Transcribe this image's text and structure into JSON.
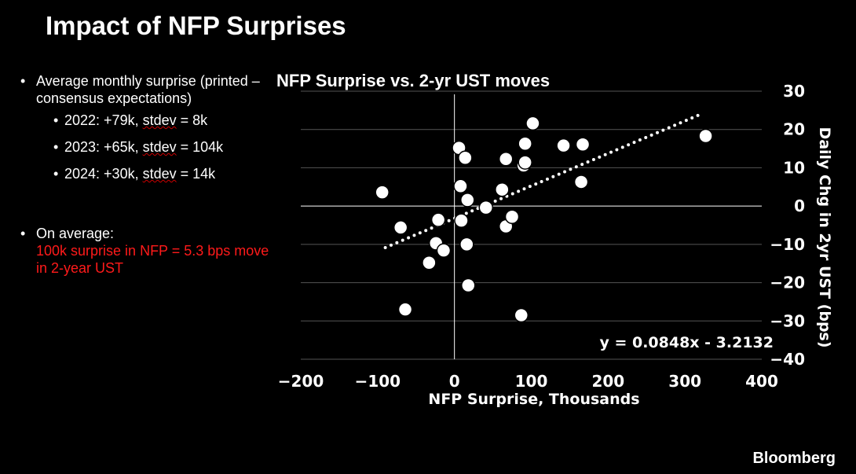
{
  "slide": {
    "title": "Impact of NFP Surprises",
    "brand": "Bloomberg"
  },
  "bullets": {
    "first": "Average monthly surprise (printed – consensus expectations)",
    "sub": [
      {
        "year": "2022: +79k, ",
        "word": "stdev",
        "rest": " = 8k"
      },
      {
        "year": "2023: +65k, ",
        "word": "stdev",
        "rest": " = 104k"
      },
      {
        "year": "2024: +30k, ",
        "word": "stdev",
        "rest": " = 14k"
      }
    ],
    "second": "On average:",
    "highlight": "100k surprise in NFP = 5.3 bps move in 2-year UST"
  },
  "colors": {
    "background": "#000000",
    "text": "#ffffff",
    "highlight": "#ff1a1a"
  },
  "chart_data": {
    "type": "scatter",
    "title": "NFP Surprise vs. 2-yr UST moves",
    "xlabel": "NFP Surprise, Thousands",
    "ylabel": "Daily Chg in 2yr UST (bps)",
    "xlim": [
      -200,
      400
    ],
    "ylim": [
      -40,
      30
    ],
    "xticks": [
      -200,
      -100,
      0,
      100,
      200,
      300,
      400
    ],
    "yticks": [
      30,
      20,
      10,
      0,
      -10,
      -20,
      -30,
      -40
    ],
    "points": [
      {
        "x": -94,
        "y": 3.6
      },
      {
        "x": -70,
        "y": -5.6
      },
      {
        "x": -64,
        "y": -27
      },
      {
        "x": -33,
        "y": -14.8
      },
      {
        "x": -24,
        "y": -9.7
      },
      {
        "x": -21,
        "y": -3.6
      },
      {
        "x": -14,
        "y": -11.6
      },
      {
        "x": 6,
        "y": 15.2
      },
      {
        "x": 8,
        "y": 5.2
      },
      {
        "x": 9,
        "y": -3.8
      },
      {
        "x": 14,
        "y": 12.6
      },
      {
        "x": 16,
        "y": -10
      },
      {
        "x": 17,
        "y": 1.6
      },
      {
        "x": 18,
        "y": -20.7
      },
      {
        "x": 41,
        "y": -0.4
      },
      {
        "x": 62,
        "y": 4.3
      },
      {
        "x": 67,
        "y": 12.3
      },
      {
        "x": 67,
        "y": -5.3
      },
      {
        "x": 75,
        "y": -2.8
      },
      {
        "x": 87,
        "y": -28.5
      },
      {
        "x": 90,
        "y": 10.6
      },
      {
        "x": 92,
        "y": 11.4
      },
      {
        "x": 92,
        "y": 16.3
      },
      {
        "x": 102,
        "y": 21.6
      },
      {
        "x": 142,
        "y": 15.8
      },
      {
        "x": 165,
        "y": 6.3
      },
      {
        "x": 167,
        "y": 16.1
      },
      {
        "x": 327,
        "y": 18.3
      }
    ],
    "trendline": {
      "slope": 0.0848,
      "intercept": -3.2132,
      "x_from": -90,
      "x_to": 322,
      "style": "dotted"
    },
    "equation_label": "y = 0.0848x - 3.2132"
  }
}
